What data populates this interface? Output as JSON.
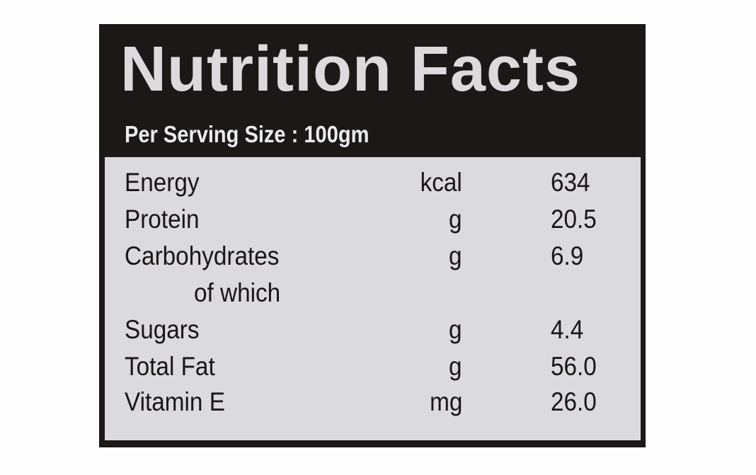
{
  "title": "Nutrition Facts",
  "serving_size": "Per Serving Size : 100gm",
  "rows": [
    {
      "name": "Energy",
      "unit": "kcal",
      "value": "634"
    },
    {
      "name": "Protein",
      "unit": "g",
      "value": "20.5"
    },
    {
      "name": "Carbohydrates",
      "unit": "g",
      "value": "6.9"
    },
    {
      "name": "of which",
      "unit": "",
      "value": ""
    },
    {
      "name": "Sugars",
      "unit": "g",
      "value": "4.4"
    },
    {
      "name": "Total Fat",
      "unit": "g",
      "value": "56.0"
    },
    {
      "name": "Vitamin E",
      "unit": "mg",
      "value": "26.0"
    }
  ]
}
